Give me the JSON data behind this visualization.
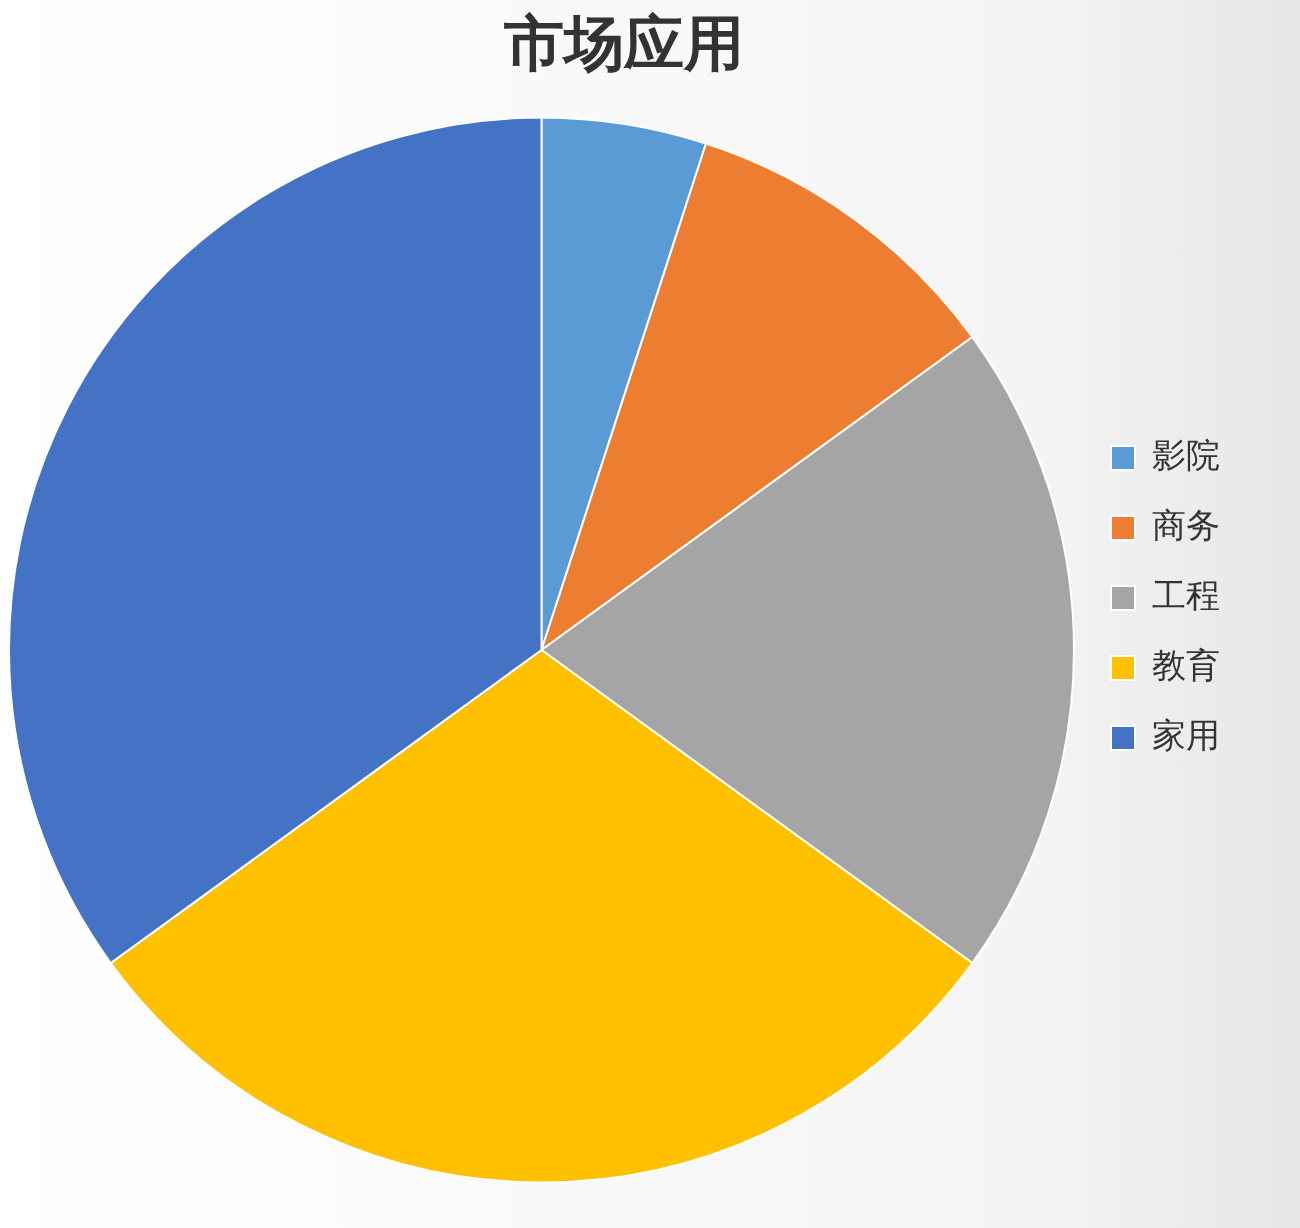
{
  "chart_data": {
    "type": "pie",
    "title": "市场应用",
    "categories": [
      "影院",
      "商务",
      "工程",
      "教育",
      "家用"
    ],
    "values": [
      5,
      10,
      20,
      30,
      35
    ],
    "colors": [
      "#5b9bd5",
      "#ed7d31",
      "#a5a5a5",
      "#ffc000",
      "#4472c4"
    ],
    "legend": "right"
  }
}
